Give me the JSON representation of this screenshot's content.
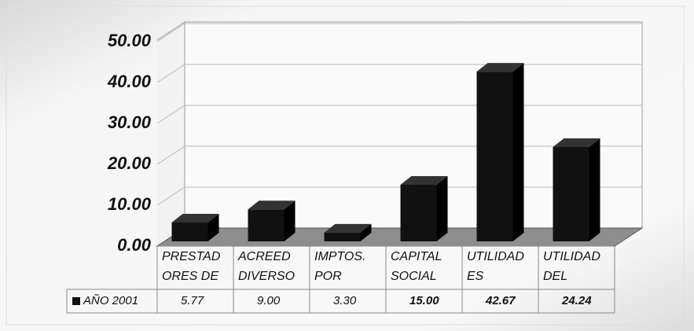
{
  "chart_data": {
    "type": "bar3d",
    "categories": [
      [
        "PRESTAD",
        "ORES DE"
      ],
      [
        "ACREED",
        "DIVERSO"
      ],
      [
        "IMPTOS.",
        "POR"
      ],
      [
        "CAPITAL",
        "SOCIAL"
      ],
      [
        "UTILIDAD",
        "ES"
      ],
      [
        "UTILIDAD",
        "DEL"
      ]
    ],
    "series": [
      {
        "name": "AÑO 2001",
        "color": "#111111",
        "values": [
          5.77,
          9.0,
          3.3,
          15.0,
          42.67,
          24.24
        ],
        "value_labels": [
          "5.77",
          "9.00",
          "3.30",
          "15.00",
          "42.67",
          "24.24"
        ]
      }
    ],
    "ylim": [
      0,
      50
    ],
    "yticks": [
      {
        "value": 0,
        "label": "0.00"
      },
      {
        "value": 10,
        "label": "10.00"
      },
      {
        "value": 20,
        "label": "20.00"
      },
      {
        "value": 30,
        "label": "30.00"
      },
      {
        "value": 40,
        "label": "40.00"
      },
      {
        "value": 50,
        "label": "50.00"
      }
    ],
    "grid": true
  }
}
